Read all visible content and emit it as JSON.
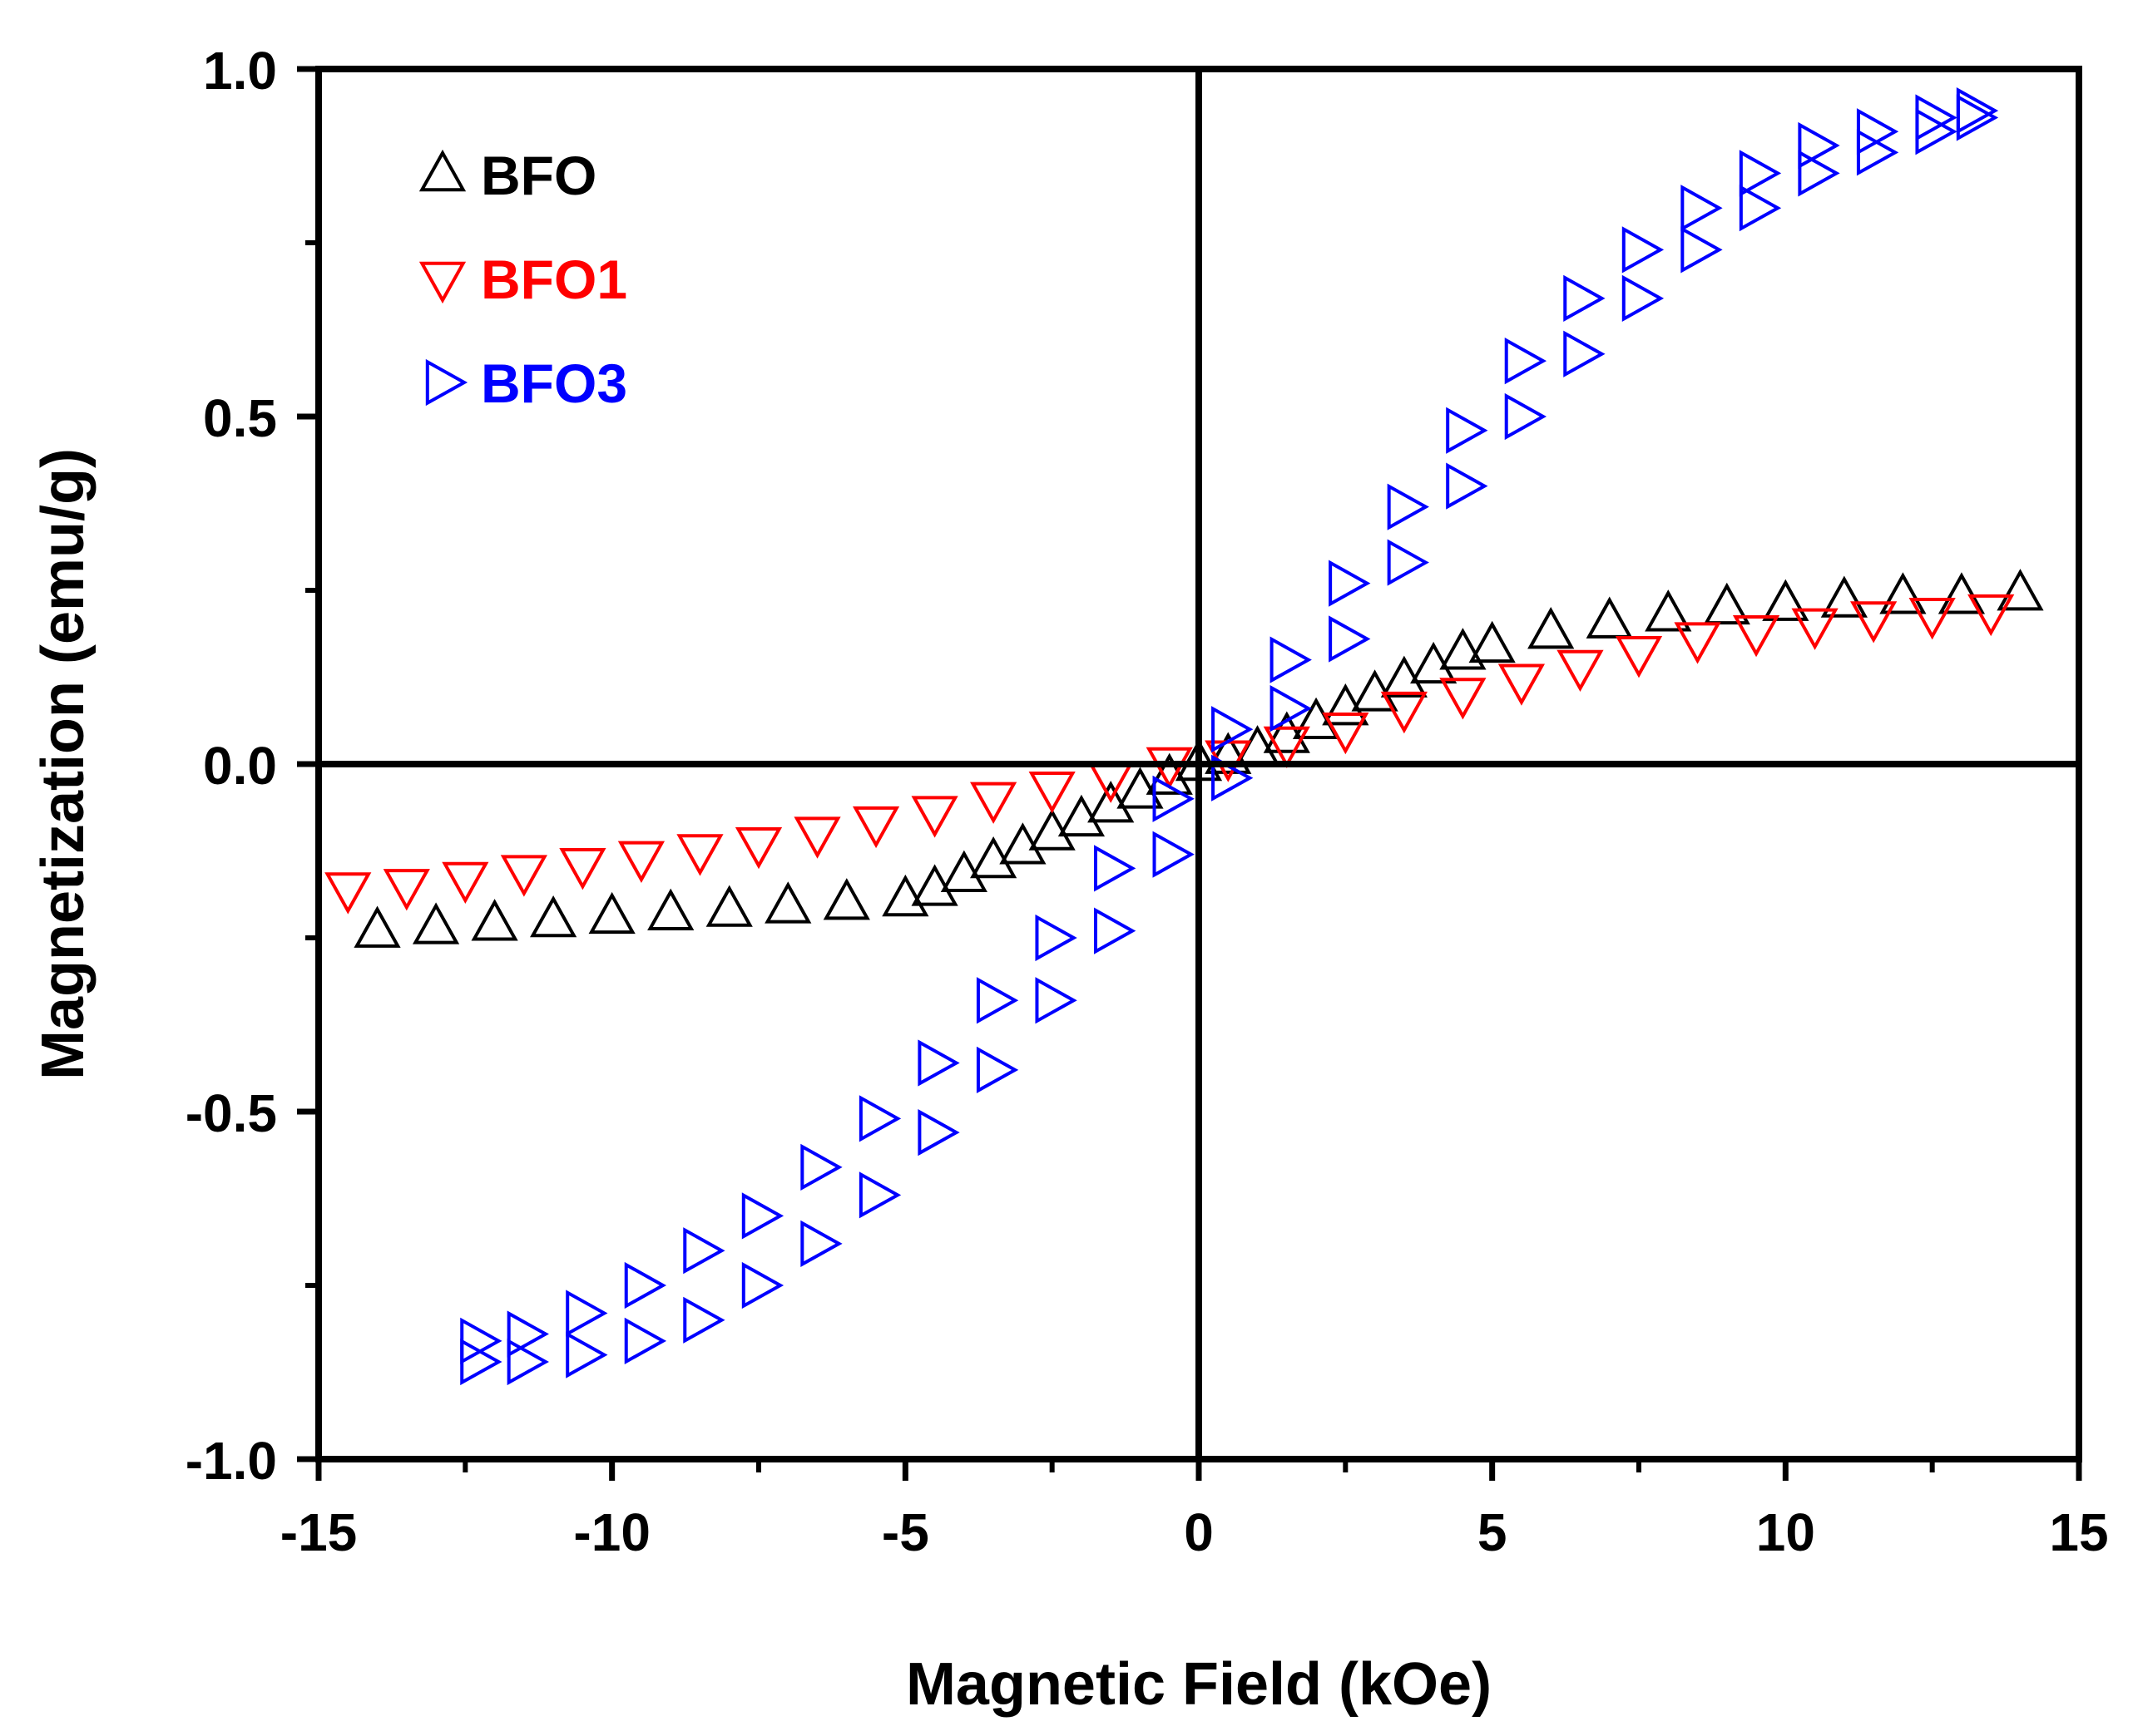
{
  "chart_data": {
    "type": "scatter",
    "title": "",
    "xlabel": "Magnetic Field (kOe)",
    "ylabel": "Magnetization (emu/g)",
    "xlim": [
      -15,
      15
    ],
    "ylim": [
      -1.0,
      1.0
    ],
    "xticks": [
      -15,
      -10,
      -5,
      0,
      5,
      10,
      15
    ],
    "xtick_labels": [
      "-15",
      "-10",
      "-5",
      "0",
      "5",
      "10",
      "15"
    ],
    "yticks": [
      -1.0,
      -0.5,
      0.0,
      0.5,
      1.0
    ],
    "ytick_labels": [
      "-1.0",
      "-0.5",
      "0.0",
      "0.5",
      "1.0"
    ],
    "zero_lines": true,
    "grid": false,
    "legend_position": "top-left",
    "series": [
      {
        "name": "BFO",
        "color": "#000000",
        "marker": "triangle-up",
        "branches": [
          {
            "x": [
              -14,
              -13,
              -12,
              -11,
              -10,
              -9,
              -8,
              -7,
              -6,
              -5,
              -4.5,
              -4,
              -3.5,
              -3,
              -2.5,
              -2,
              -1.5,
              -1,
              -0.5,
              0,
              0.5,
              1,
              1.5,
              2,
              2.5,
              3,
              3.5,
              4,
              4.5,
              5,
              6,
              7,
              8,
              9,
              10,
              11,
              12,
              13,
              14
            ],
            "y": [
              -0.24,
              -0.235,
              -0.23,
              -0.225,
              -0.22,
              -0.215,
              -0.21,
              -0.205,
              -0.2,
              -0.195,
              -0.18,
              -0.16,
              -0.14,
              -0.12,
              -0.1,
              -0.08,
              -0.06,
              -0.04,
              -0.02,
              0.0,
              0.01,
              0.02,
              0.04,
              0.06,
              0.08,
              0.1,
              0.12,
              0.14,
              0.16,
              0.17,
              0.19,
              0.205,
              0.215,
              0.225,
              0.23,
              0.235,
              0.24,
              0.24,
              0.245
            ]
          }
        ]
      },
      {
        "name": "BFO1",
        "color": "#ff0000",
        "marker": "triangle-down",
        "branches": [
          {
            "x": [
              -14.5,
              -13.5,
              -12.5,
              -11.5,
              -10.5,
              -9.5,
              -8.5,
              -7.5,
              -6.5,
              -5.5,
              -4.5,
              -3.5,
              -2.5,
              -1.5,
              -0.5,
              0.5,
              1.5,
              2.5,
              3.5,
              4.5,
              5.5,
              6.5,
              7.5,
              8.5,
              9.5,
              10.5,
              11.5,
              12.5,
              13.5
            ],
            "y": [
              -0.18,
              -0.175,
              -0.165,
              -0.155,
              -0.145,
              -0.135,
              -0.125,
              -0.115,
              -0.1,
              -0.085,
              -0.07,
              -0.05,
              -0.035,
              -0.02,
              0.0,
              0.01,
              0.03,
              0.05,
              0.08,
              0.1,
              0.12,
              0.14,
              0.16,
              0.18,
              0.19,
              0.2,
              0.21,
              0.215,
              0.22
            ]
          }
        ]
      },
      {
        "name": "BFO3",
        "color": "#0000ff",
        "marker": "triangle-right",
        "branches": [
          {
            "x": [
              -12.3,
              -11.5,
              -10.5,
              -9.5,
              -8.5,
              -7.5,
              -6.5,
              -5.5,
              -4.5,
              -3.5,
              -2.5,
              -1.5,
              -0.5,
              0.5,
              1.5,
              2.5,
              3.5,
              4.5,
              5.5,
              6.5,
              7.5,
              8.5,
              9.5,
              10.5,
              11.5,
              12.5,
              13.2
            ],
            "y": [
              -0.83,
              -0.82,
              -0.79,
              -0.75,
              -0.7,
              -0.65,
              -0.58,
              -0.51,
              -0.43,
              -0.34,
              -0.25,
              -0.15,
              -0.05,
              0.05,
              0.15,
              0.26,
              0.37,
              0.48,
              0.58,
              0.67,
              0.74,
              0.8,
              0.85,
              0.89,
              0.91,
              0.93,
              0.94
            ]
          },
          {
            "x": [
              -12.3,
              -11.5,
              -10.5,
              -9.5,
              -8.5,
              -7.5,
              -6.5,
              -5.5,
              -4.5,
              -3.5,
              -2.5,
              -1.5,
              -0.5,
              0.5,
              1.5,
              2.5,
              3.5,
              4.5,
              5.5,
              6.5,
              7.5,
              8.5,
              9.5,
              10.5,
              11.5,
              12.5,
              13.2
            ],
            "y": [
              -0.86,
              -0.86,
              -0.85,
              -0.83,
              -0.8,
              -0.75,
              -0.69,
              -0.62,
              -0.53,
              -0.44,
              -0.34,
              -0.24,
              -0.13,
              -0.02,
              0.08,
              0.18,
              0.29,
              0.4,
              0.5,
              0.59,
              0.67,
              0.74,
              0.8,
              0.85,
              0.88,
              0.91,
              0.93
            ]
          }
        ]
      }
    ]
  }
}
